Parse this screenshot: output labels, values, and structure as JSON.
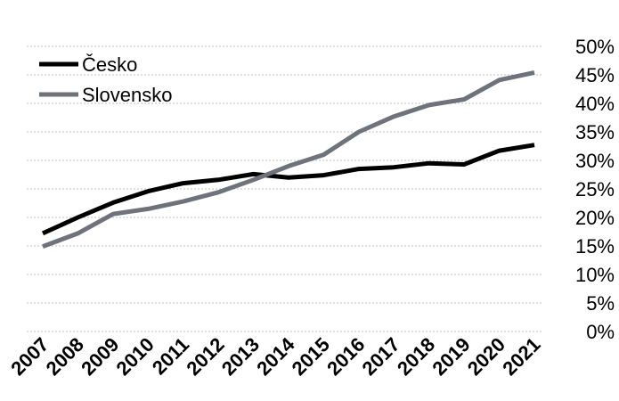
{
  "chart_data": {
    "type": "line",
    "title": "",
    "xlabel": "",
    "ylabel": "",
    "x": [
      "2007",
      "2008",
      "2009",
      "2010",
      "2011",
      "2012",
      "2013",
      "2014",
      "2015",
      "2016",
      "2017",
      "2018",
      "2019",
      "2020",
      "2021"
    ],
    "y_ticks": [
      "0%",
      "5%",
      "10%",
      "15%",
      "20%",
      "25%",
      "30%",
      "35%",
      "40%",
      "45%",
      "50%"
    ],
    "ylim": [
      0,
      50
    ],
    "y_unit": "%",
    "y_axis_side": "right",
    "grid": true,
    "legend_placement": "top-left",
    "series": [
      {
        "name": "Česko",
        "color": "#000000",
        "values": [
          17.2,
          20.0,
          22.6,
          24.6,
          26.0,
          26.6,
          27.6,
          27.0,
          27.4,
          28.5,
          28.8,
          29.5,
          29.3,
          31.7,
          32.7
        ]
      },
      {
        "name": "Slovensko",
        "color": "#6e737b",
        "values": [
          14.9,
          17.2,
          20.6,
          21.5,
          22.8,
          24.4,
          26.6,
          29.0,
          31.0,
          35.0,
          37.7,
          39.7,
          40.7,
          44.1,
          45.4
        ]
      }
    ]
  }
}
